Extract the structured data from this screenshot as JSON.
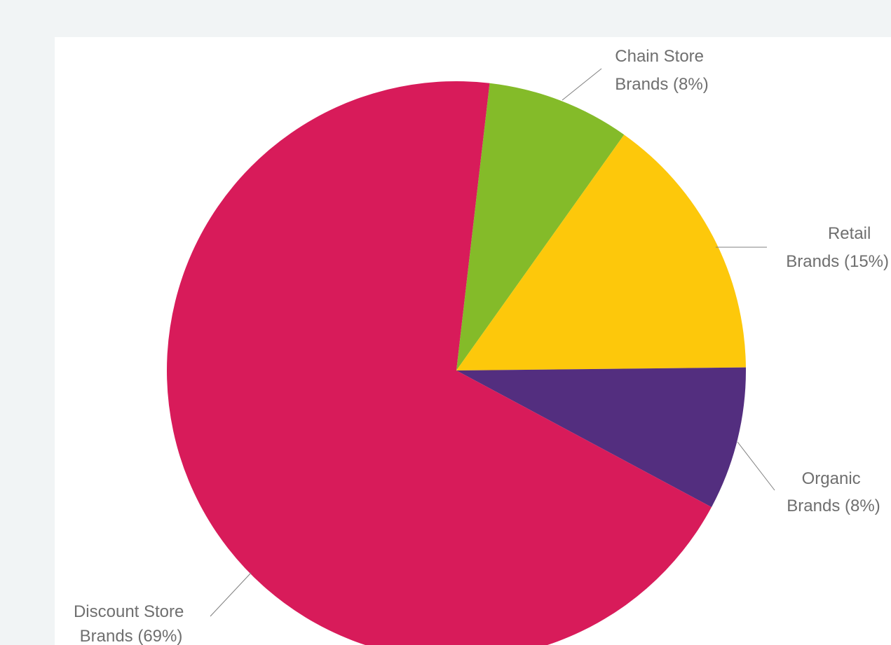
{
  "chart_data": {
    "type": "pie",
    "slices": [
      {
        "name": "Chain Store",
        "label_line1": "Chain Store",
        "label_line2": "Brands (8%)",
        "value": 8,
        "color": "#84bb29"
      },
      {
        "name": "Retail",
        "label_line1": "Retail",
        "label_line2": "Brands (15%)",
        "value": 15,
        "color": "#fdc80b"
      },
      {
        "name": "Organic",
        "label_line1": "Organic",
        "label_line2": "Brands (8%)",
        "value": 8,
        "color": "#532e7f"
      },
      {
        "name": "Discount Store",
        "label_line1": "Discount Store",
        "label_line2": "Brands (69%)",
        "value": 69,
        "color": "#d81b5a"
      }
    ],
    "start_angle_deg": 6.6,
    "legend": "none"
  }
}
